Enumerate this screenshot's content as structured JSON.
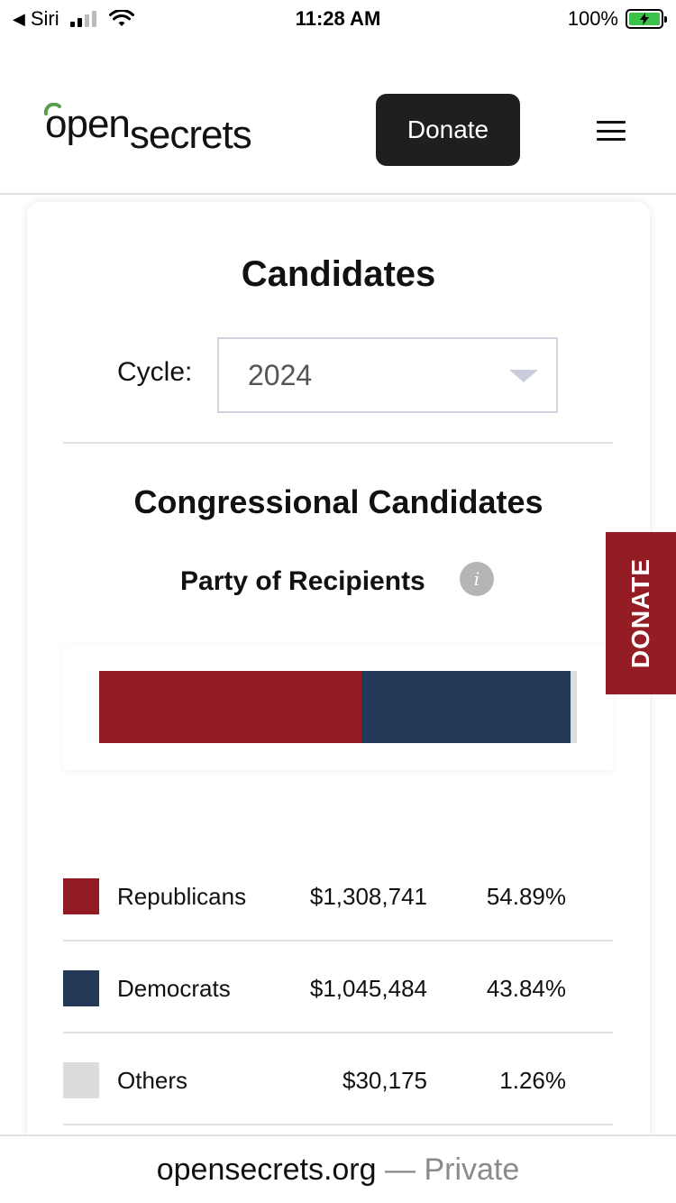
{
  "status_bar": {
    "carrier": "Siri",
    "time": "11:28 AM",
    "battery_percent": "100%",
    "signal_bars": 2,
    "battery_level": 1.0
  },
  "header": {
    "logo_part1": "open",
    "logo_part2": "secrets",
    "donate_label": "Donate",
    "menu_icon": "hamburger-icon",
    "brand_accent": "#5a9e4b"
  },
  "candidates": {
    "title": "Candidates",
    "cycle_label": "Cycle:",
    "cycle_value": "2024"
  },
  "congressional": {
    "title": "Congressional Candidates",
    "subtitle": "Party of Recipients",
    "info_icon": "info-icon"
  },
  "chart_data": {
    "type": "bar",
    "stacked": true,
    "orientation": "horizontal",
    "categories": [
      "Republicans",
      "Democrats",
      "Others"
    ],
    "values": [
      54.89,
      43.84,
      1.26
    ],
    "colors": [
      "#931c24",
      "#243858",
      "#dcdcdc"
    ]
  },
  "party_table": {
    "rows": [
      {
        "name": "Republicans",
        "amount": "$1,308,741",
        "percent": "54.89%",
        "color": "#931c24"
      },
      {
        "name": "Democrats",
        "amount": "$1,045,484",
        "percent": "43.84%",
        "color": "#243858"
      },
      {
        "name": "Others",
        "amount": "$30,175",
        "percent": "1.26%",
        "color": "#dcdcdc"
      }
    ]
  },
  "side_tab": {
    "label": "DONATE",
    "color": "#941c24"
  },
  "url_bar": {
    "domain": "opensecrets.org",
    "separator": " — ",
    "mode": "Private"
  }
}
